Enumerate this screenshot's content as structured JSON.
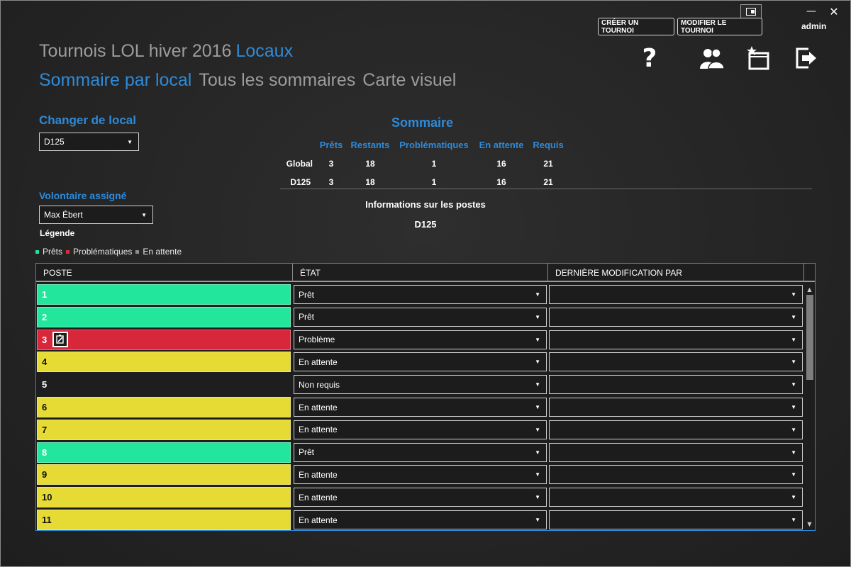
{
  "window": {
    "minimize_glyph": "—",
    "close_glyph": "✕"
  },
  "toolbar": {
    "create_label": "CRÉER UN TOURNOI",
    "modify_label": "MODIFIER LE TOURNOI",
    "user": "admin",
    "icons": [
      "help-icon",
      "users-icon",
      "new-window-icon",
      "exit-icon"
    ],
    "help_glyph": "?"
  },
  "header": {
    "title": "Tournois LOL hiver 2016",
    "crumb": "Locaux",
    "tabs": [
      {
        "label": "Sommaire par local",
        "active": true
      },
      {
        "label": "Tous les sommaires",
        "active": false
      },
      {
        "label": "Carte visuel",
        "active": false
      }
    ]
  },
  "left_panel": {
    "change_room_label": "Changer de local",
    "room_selected": "D125",
    "volunteer_label": "Volontaire assigné",
    "volunteer_selected": "Max Ébert",
    "legend_title": "Légende",
    "legend": [
      {
        "label": "Prêts",
        "color": "#1fe39a"
      },
      {
        "label": "Problématiques",
        "color": "#e0283a"
      },
      {
        "label": "En attente",
        "color": "#8c8c8c"
      }
    ]
  },
  "summary": {
    "title": "Sommaire",
    "columns": [
      "Prêts",
      "Restants",
      "Problématiques",
      "En attente",
      "Requis"
    ],
    "rows": [
      {
        "label": "Global",
        "values": [
          "3",
          "18",
          "1",
          "16",
          "21"
        ]
      },
      {
        "label": "D125",
        "values": [
          "3",
          "18",
          "1",
          "16",
          "21"
        ]
      }
    ],
    "info_title": "Informations sur les postes",
    "info_room": "D125"
  },
  "grid": {
    "columns": [
      "POSTE",
      "ÉTAT",
      "DERNIÈRE MODIFICATION PAR"
    ],
    "rows": [
      {
        "poste": "1",
        "etat": "Prêt",
        "modif": "",
        "color": "#22e69c",
        "dark_text": false
      },
      {
        "poste": "2",
        "etat": "Prêt",
        "modif": "",
        "color": "#22e69c",
        "dark_text": false
      },
      {
        "poste": "3",
        "etat": "Problème",
        "modif": "",
        "color": "#d8273a",
        "dark_text": false,
        "has_edit_icon": true
      },
      {
        "poste": "4",
        "etat": "En attente",
        "modif": "",
        "color": "#e6db35",
        "dark_text": true
      },
      {
        "poste": "5",
        "etat": "Non requis",
        "modif": "",
        "color": "",
        "dark_text": false
      },
      {
        "poste": "6",
        "etat": "En attente",
        "modif": "",
        "color": "#e6db35",
        "dark_text": true
      },
      {
        "poste": "7",
        "etat": "En attente",
        "modif": "",
        "color": "#e6db35",
        "dark_text": true
      },
      {
        "poste": "8",
        "etat": "Prêt",
        "modif": "",
        "color": "#22e69c",
        "dark_text": false
      },
      {
        "poste": "9",
        "etat": "En attente",
        "modif": "",
        "color": "#e6db35",
        "dark_text": true
      },
      {
        "poste": "10",
        "etat": "En attente",
        "modif": "",
        "color": "#e6db35",
        "dark_text": true
      },
      {
        "poste": "11",
        "etat": "En attente",
        "modif": "",
        "color": "#e6db35",
        "dark_text": true
      }
    ]
  },
  "theme": {
    "accent": "#2e8ad8",
    "muted_text": "#9c9c9c"
  }
}
